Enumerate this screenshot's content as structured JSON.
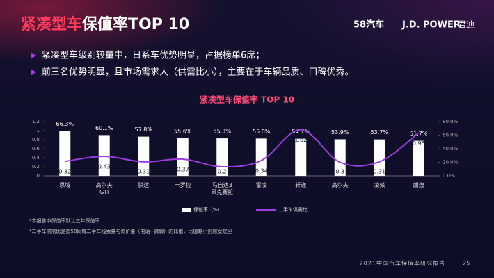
{
  "header": {
    "title_highlight": "紧凑型车",
    "title": "保值率TOP 10",
    "logo_58": "58汽车",
    "logo_jdp": "J.D. POWER",
    "logo_cn": "君迪"
  },
  "bullets": [
    "紧凑型车级别较量中，日系车优势明显，占据榜单6席；",
    "前三名优势明显，且市场需求大（供需比小），主要在于车辆品质、口碑优秀。"
  ],
  "chart_data": {
    "type": "combo",
    "title": "紧凑型车保值率 TOP 10",
    "categories": [
      "思域",
      "高尔夫\nGTI",
      "骐达",
      "卡罗拉",
      "马自达3\n昂克赛拉",
      "雷凌",
      "轩逸",
      "高尔夫",
      "凌派",
      "朗逸"
    ],
    "series": [
      {
        "name": "保值率（%）",
        "type": "bar",
        "axis": "y2",
        "color": "#ffffff",
        "values": [
          66.3,
          60.1,
          57.8,
          55.6,
          55.3,
          55.0,
          54.7,
          53.9,
          53.7,
          51.7
        ],
        "value_labels": [
          "66.3%",
          "60.1%",
          "57.8%",
          "55.6%",
          "55.3%",
          "55.0%",
          "54.7%",
          "53.9%",
          "53.7%",
          "51.7%"
        ]
      },
      {
        "name": "二手车供需比",
        "type": "line",
        "color": "#9b3ee0",
        "values": [
          0.32,
          0.43,
          0.31,
          0.37,
          0.2,
          0.34,
          1.02,
          0.3,
          0.31,
          0.95
        ]
      }
    ],
    "ylim": [
      0,
      1.2
    ],
    "yticks": [
      0,
      0.2,
      0.4,
      0.6,
      0.8,
      1,
      1.2
    ],
    "y2lim": [
      0,
      80
    ],
    "y2ticks": [
      {
        "value": 0,
        "label": "0.0%"
      },
      {
        "value": 20,
        "label": "20.0%"
      },
      {
        "value": 40,
        "label": "40.0%"
      },
      {
        "value": 60,
        "label": "60.0%"
      },
      {
        "value": 80,
        "label": "80.0%"
      }
    ],
    "legend": "bottom"
  },
  "notes": [
    "*本报告中保值率默认三年保值率",
    "*二手车供需比是指58同城二手车线索量与询价量（电话+微聊）的比值，比值越小则越受欢迎"
  ],
  "footer": {
    "report": "2021中国汽车保值率研究报告",
    "page": "25"
  }
}
